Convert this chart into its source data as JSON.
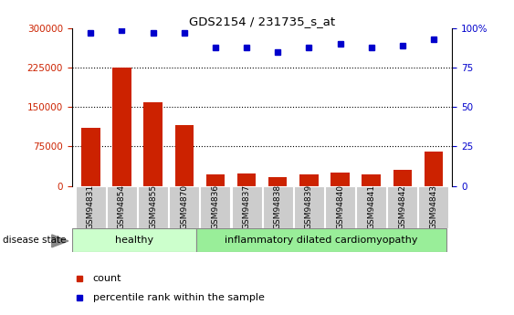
{
  "title": "GDS2154 / 231735_s_at",
  "categories": [
    "GSM94831",
    "GSM94854",
    "GSM94855",
    "GSM94870",
    "GSM94836",
    "GSM94837",
    "GSM94838",
    "GSM94839",
    "GSM94840",
    "GSM94841",
    "GSM94842",
    "GSM94843"
  ],
  "counts": [
    110000,
    225000,
    160000,
    115000,
    22000,
    24000,
    17000,
    22000,
    26000,
    22000,
    30000,
    65000
  ],
  "percentiles": [
    97,
    99,
    97,
    97,
    88,
    88,
    85,
    88,
    90,
    88,
    89,
    93
  ],
  "healthy_count": 4,
  "healthy_label": "healthy",
  "disease_label": "inflammatory dilated cardiomyopathy",
  "disease_state_label": "disease state",
  "left_yaxis_ticks": [
    0,
    75000,
    150000,
    225000,
    300000
  ],
  "left_yaxis_labels": [
    "0",
    "75000",
    "150000",
    "225000",
    "300000"
  ],
  "right_yaxis_ticks": [
    0,
    25,
    50,
    75,
    100
  ],
  "right_yaxis_labels": [
    "0",
    "25",
    "50",
    "75",
    "100%"
  ],
  "bar_color": "#cc2200",
  "dot_color": "#0000cc",
  "healthy_bg": "#ccffcc",
  "disease_bg": "#99ee99",
  "tick_label_bg": "#cccccc",
  "left_tick_color": "#cc2200",
  "right_tick_color": "#0000cc"
}
